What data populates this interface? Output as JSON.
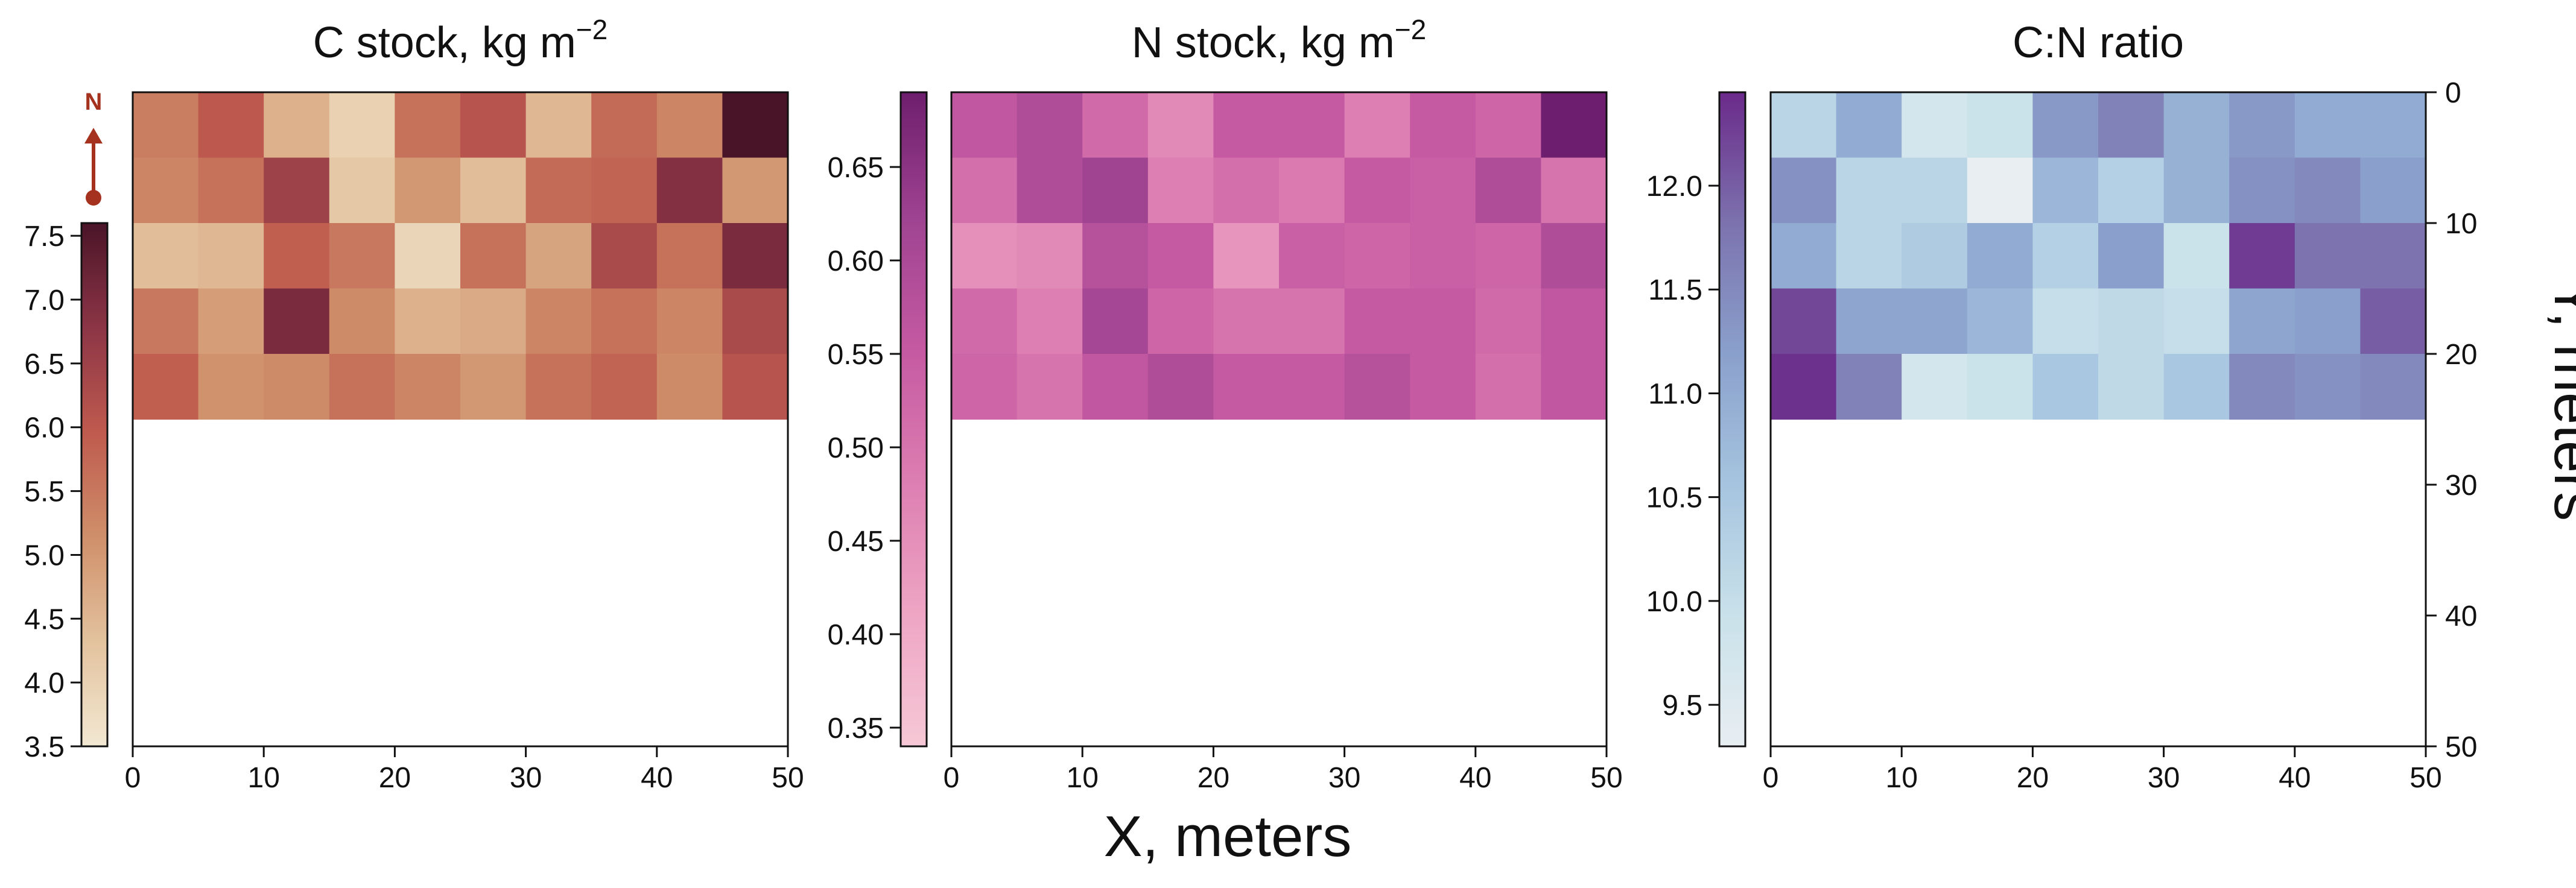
{
  "figure": {
    "xlabel": "X, meters",
    "ylabel": "Y, meters",
    "north_label": "N",
    "north_color": "#a4321e"
  },
  "chart_data": [
    {
      "type": "heatmap",
      "title": "C stock, kg m",
      "title_superscript": "−2",
      "x_ticks": [
        "0",
        "10",
        "20",
        "30",
        "40",
        "50"
      ],
      "xlim": [
        0,
        50
      ],
      "ylim": [
        0,
        50
      ],
      "y_axis_inverted": true,
      "grid": false,
      "cell_size_m": 5,
      "colorbar": {
        "range": [
          3.5,
          7.6
        ],
        "ticks": [
          "3.5",
          "4.0",
          "4.5",
          "5.0",
          "5.5",
          "6.0",
          "6.5",
          "7.0",
          "7.5"
        ],
        "tick_values": [
          3.5,
          4.0,
          4.5,
          5.0,
          5.5,
          6.0,
          6.5,
          7.0,
          7.5
        ],
        "placement": "left",
        "colors": [
          "#f2e8d2",
          "#e3c29e",
          "#cf8f6a",
          "#bf5a4e",
          "#8c3546",
          "#4a1428"
        ]
      },
      "values": [
        [
          5.4,
          6.0,
          4.6,
          4.0,
          5.6,
          6.1,
          4.5,
          5.7,
          5.3,
          7.6
        ],
        [
          5.3,
          5.6,
          6.5,
          4.2,
          5.0,
          4.4,
          5.7,
          5.8,
          6.9,
          5.0
        ],
        [
          4.4,
          4.5,
          5.9,
          5.5,
          3.9,
          5.6,
          4.8,
          6.3,
          5.6,
          7.0
        ],
        [
          5.5,
          4.9,
          7.0,
          5.2,
          4.6,
          4.7,
          5.3,
          5.6,
          5.3,
          6.3
        ],
        [
          5.9,
          5.1,
          5.2,
          5.6,
          5.3,
          5.0,
          5.6,
          5.8,
          5.2,
          6.1
        ]
      ]
    },
    {
      "type": "heatmap",
      "title": "N stock, kg m",
      "title_superscript": "−2",
      "x_ticks": [
        "0",
        "10",
        "20",
        "30",
        "40",
        "50"
      ],
      "xlim": [
        0,
        50
      ],
      "ylim": [
        0,
        50
      ],
      "y_axis_inverted": true,
      "grid": false,
      "cell_size_m": 5,
      "colorbar": {
        "range": [
          0.34,
          0.69
        ],
        "ticks": [
          "0.35",
          "0.40",
          "0.45",
          "0.50",
          "0.55",
          "0.60",
          "0.65"
        ],
        "tick_values": [
          0.35,
          0.4,
          0.45,
          0.5,
          0.55,
          0.6,
          0.65
        ],
        "placement": "left",
        "colors": [
          "#f6c8d6",
          "#eea6c4",
          "#dd7fb2",
          "#c65aa2",
          "#a04492",
          "#6e1e6e"
        ]
      },
      "values": [
        [
          0.56,
          0.59,
          0.52,
          0.46,
          0.55,
          0.55,
          0.48,
          0.55,
          0.53,
          0.69
        ],
        [
          0.51,
          0.59,
          0.62,
          0.48,
          0.51,
          0.49,
          0.55,
          0.54,
          0.59,
          0.5
        ],
        [
          0.45,
          0.46,
          0.58,
          0.55,
          0.44,
          0.54,
          0.53,
          0.54,
          0.53,
          0.59
        ],
        [
          0.52,
          0.48,
          0.61,
          0.53,
          0.5,
          0.5,
          0.55,
          0.55,
          0.52,
          0.56
        ],
        [
          0.53,
          0.5,
          0.56,
          0.59,
          0.55,
          0.55,
          0.58,
          0.55,
          0.51,
          0.56
        ]
      ]
    },
    {
      "type": "heatmap",
      "title": "C:N ratio",
      "title_superscript": "",
      "x_ticks": [
        "0",
        "10",
        "20",
        "30",
        "40",
        "50"
      ],
      "y_ticks": [
        "0",
        "10",
        "20",
        "30",
        "40",
        "50"
      ],
      "y_tick_values": [
        0,
        10,
        20,
        30,
        40,
        50
      ],
      "xlim": [
        0,
        50
      ],
      "ylim": [
        0,
        50
      ],
      "y_axis_inverted": true,
      "y_axis_side": "right",
      "grid": false,
      "cell_size_m": 5,
      "colorbar": {
        "range": [
          9.3,
          12.45
        ],
        "ticks": [
          "9.5",
          "10.0",
          "10.5",
          "11.0",
          "11.5",
          "12.0"
        ],
        "tick_values": [
          9.5,
          10.0,
          10.5,
          11.0,
          11.5,
          12.0
        ],
        "placement": "left",
        "colors": [
          "#e8eef2",
          "#c9e1ea",
          "#a6c4df",
          "#8aa0cc",
          "#7c72ae",
          "#6b2a8a"
        ]
      },
      "values": [
        [
          10.2,
          11.0,
          9.7,
          9.9,
          11.3,
          11.6,
          10.9,
          11.3,
          11.0,
          11.0
        ],
        [
          11.4,
          10.2,
          10.2,
          9.3,
          10.8,
          10.3,
          10.9,
          11.4,
          11.5,
          11.2
        ],
        [
          11.0,
          10.2,
          10.4,
          11.0,
          10.3,
          11.2,
          9.9,
          12.3,
          11.8,
          11.8
        ],
        [
          12.2,
          11.1,
          11.1,
          10.8,
          10.0,
          10.1,
          10.0,
          11.1,
          11.2,
          12.0
        ],
        [
          12.4,
          11.6,
          9.7,
          9.9,
          10.5,
          10.1,
          10.5,
          11.5,
          11.4,
          11.5
        ]
      ]
    }
  ]
}
